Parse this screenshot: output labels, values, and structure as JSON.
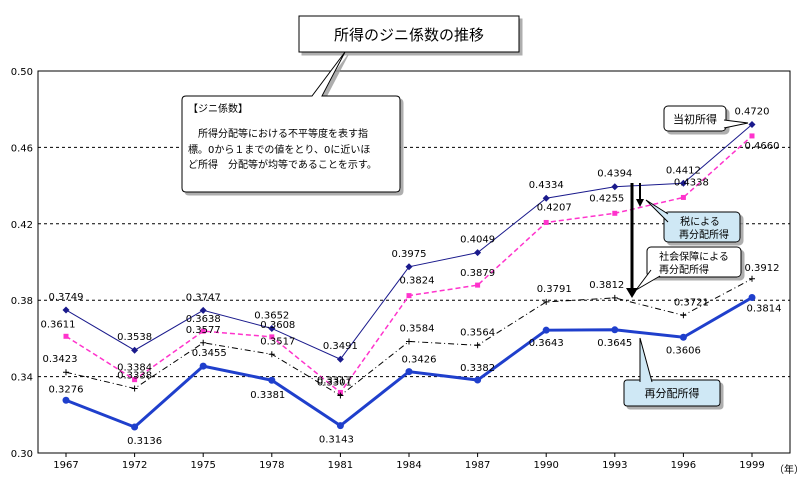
{
  "chart_data": {
    "type": "line",
    "title": "所得のジニ係数の推移",
    "x": [
      "1967",
      "1972",
      "1975",
      "1978",
      "1981",
      "1984",
      "1987",
      "1990",
      "1993",
      "1996",
      "1999"
    ],
    "x_unit": "（年）",
    "ylim": [
      0.3,
      0.5
    ],
    "yticks": [
      "0.30",
      "0.34",
      "0.38",
      "0.42",
      "0.46",
      "0.50"
    ],
    "grid": "horizontal dashed",
    "series": [
      {
        "name": "当初所得",
        "values": [
          0.3749,
          0.3538,
          0.3747,
          0.3652,
          0.3491,
          0.3975,
          0.4049,
          0.4334,
          0.4394,
          0.4412,
          0.472
        ],
        "labels": [
          "0.3749",
          "0.3538",
          "0.3747",
          "0.3652",
          "0.3491",
          "0.3975",
          "0.4049",
          "0.4334",
          "0.4394",
          "0.4412",
          "0.4720"
        ],
        "color": "#1a1a8c",
        "style": "solid thin",
        "marker": "diamond"
      },
      {
        "name": "税による再分配所得",
        "values": [
          0.3611,
          0.3384,
          0.3638,
          0.3608,
          0.3317,
          0.3824,
          0.3879,
          0.4207,
          0.4255,
          0.4338,
          0.466
        ],
        "labels": [
          "0.3611",
          "0.3384",
          "0.3638",
          "0.3608",
          "0.3317",
          "0.3824",
          "0.3879",
          "0.4207",
          "0.4255",
          "0.4338",
          "0.4660"
        ],
        "color": "#ff33cc",
        "style": "dashed",
        "marker": "square"
      },
      {
        "name": "社会保障による再分配所得",
        "values": [
          0.3423,
          0.3338,
          0.3577,
          0.3517,
          0.3301,
          0.3584,
          0.3564,
          0.3791,
          0.3812,
          0.3721,
          0.3912
        ],
        "labels": [
          "0.3423",
          "0.3338",
          "0.3577",
          "0.3517",
          "0.3301",
          "0.3584",
          "0.3564",
          "0.3791",
          "0.3812",
          "0.3721",
          "0.3912"
        ],
        "color": "#000000",
        "style": "dash-dot",
        "marker": "plus"
      },
      {
        "name": "再分配所得",
        "values": [
          0.3276,
          0.3136,
          0.3455,
          0.3381,
          0.3143,
          0.3426,
          0.3382,
          0.3643,
          0.3645,
          0.3606,
          0.3814
        ],
        "labels": [
          "0.3276",
          "0.3136",
          "0.3455",
          "0.3381",
          "0.3143",
          "0.3426",
          "0.3382",
          "0.3643",
          "0.3645",
          "0.3606",
          "0.3814"
        ],
        "color": "#1f3fcc",
        "style": "solid thick",
        "marker": "circle"
      }
    ],
    "legend_callouts": {
      "initial": "当初所得",
      "tax_line1": "税による",
      "tax_line2": "再分配所得",
      "social_line1": "社会保障による",
      "social_line2": "再分配所得",
      "redistributed": "再分配所得"
    },
    "note_callout": {
      "heading": "【ジニ係数】",
      "line1": "所得分配等における不平等度を表す指",
      "line2": "標。0から１までの値をとり、0に近いほ",
      "line3": "ど所得　分配等が均等であることを示す。"
    }
  }
}
